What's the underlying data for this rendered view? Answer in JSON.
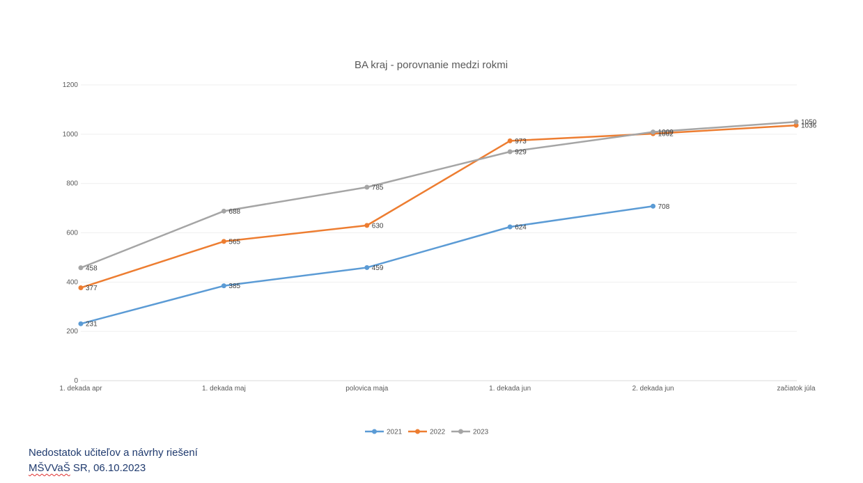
{
  "chart_data": {
    "type": "line",
    "title": "BA kraj - porovnanie medzi rokmi",
    "categories": [
      "1. dekada apr",
      "1. dekada maj",
      "polovica maja",
      "1. dekada jun",
      "2. dekada jun",
      "začiatok júla"
    ],
    "series": [
      {
        "name": "2021",
        "color": "#5b9bd5",
        "values": [
          231,
          385,
          459,
          624,
          708,
          null
        ]
      },
      {
        "name": "2022",
        "color": "#ed7d31",
        "values": [
          377,
          565,
          630,
          973,
          1002,
          1036
        ]
      },
      {
        "name": "2023",
        "color": "#a5a5a5",
        "values": [
          458,
          688,
          785,
          929,
          1009,
          1050
        ]
      }
    ],
    "ylim": [
      0,
      1200
    ],
    "yticks": [
      0,
      200,
      400,
      600,
      800,
      1000,
      1200
    ],
    "grid": true,
    "legend_position": "bottom"
  },
  "footer": {
    "line1": "Nedostatok učiteľov a návrhy riešení",
    "line2_prefix": "MŠVVaŠ",
    "line2_rest": " SR, 06.10.2023"
  }
}
